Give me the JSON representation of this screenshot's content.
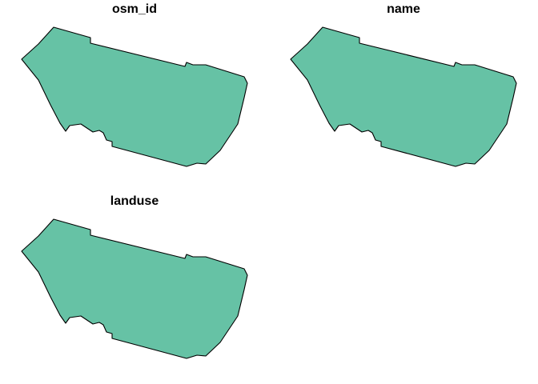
{
  "panels": [
    {
      "title": "osm_id"
    },
    {
      "title": "name"
    },
    {
      "title": "landuse"
    }
  ],
  "fill_color": "#66c2a5",
  "stroke_color": "#000000"
}
